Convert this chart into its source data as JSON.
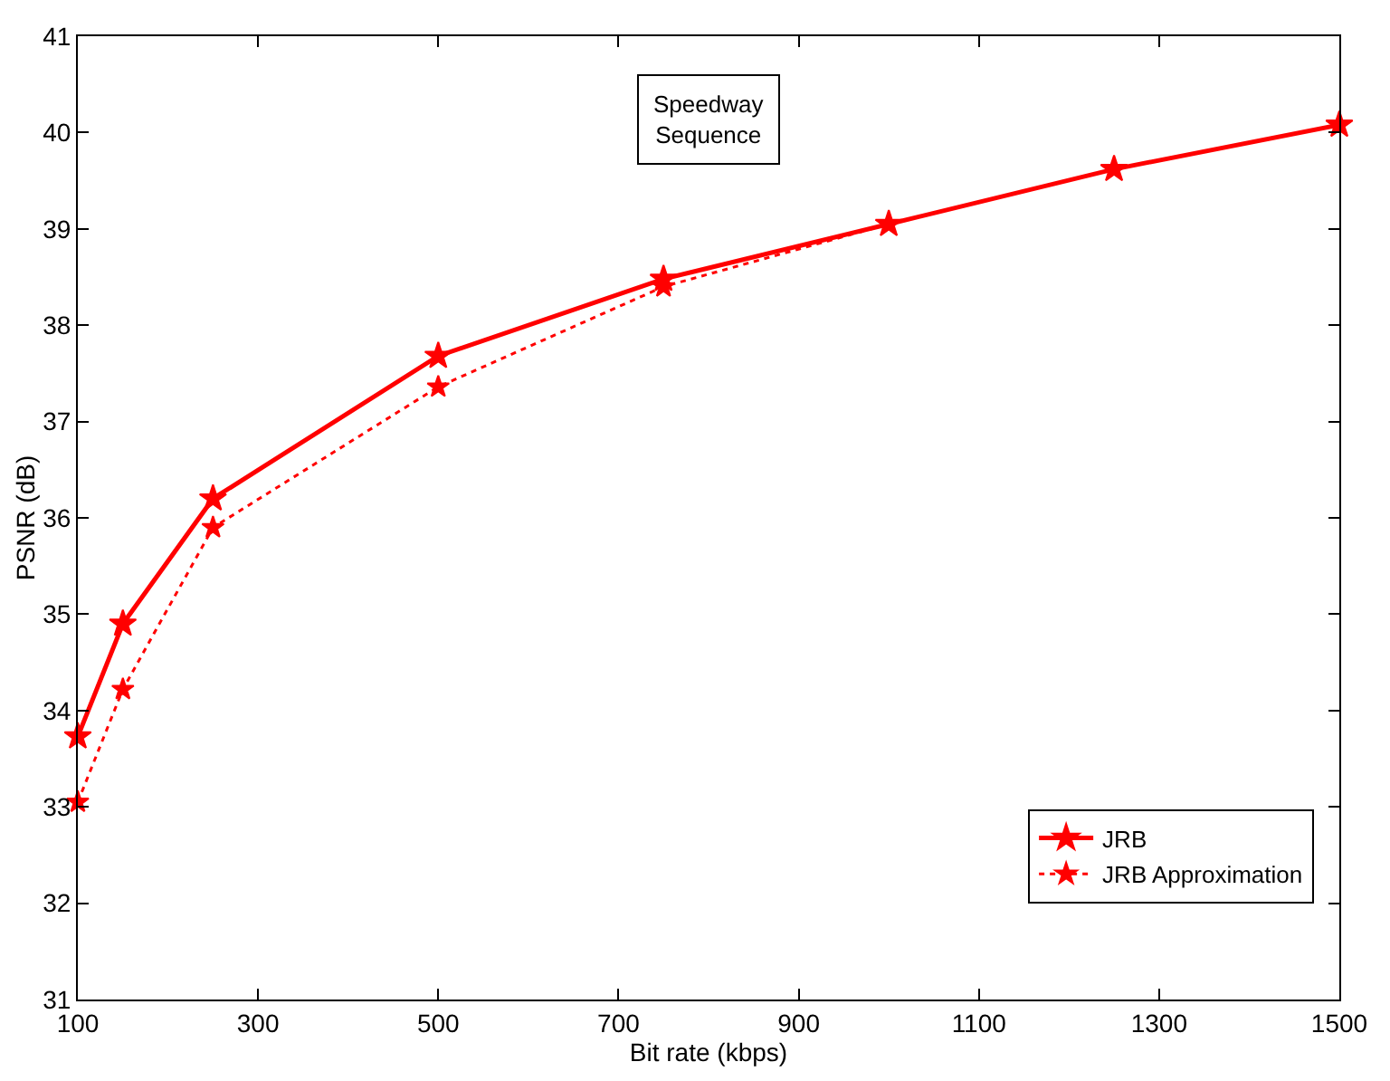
{
  "chart_data": {
    "type": "line",
    "xlabel": "Bit rate (kbps)",
    "ylabel": "PSNR (dB)",
    "annotations": [
      "Speedway\nSequence"
    ],
    "xlim": [
      100,
      1500
    ],
    "xticks": [
      100,
      300,
      500,
      700,
      900,
      1100,
      1300,
      1500
    ],
    "ylim": [
      31,
      41
    ],
    "yticks": [
      31,
      32,
      33,
      34,
      35,
      36,
      37,
      38,
      39,
      40,
      41
    ],
    "grid": false,
    "legend": "bottom right",
    "marker": "star",
    "series": [
      {
        "name": "JRB",
        "color": "#ff0000",
        "line_style": "solid",
        "x": [
          100,
          150,
          250,
          500,
          750,
          1000,
          1250,
          1500
        ],
        "values": [
          33.73,
          34.9,
          36.2,
          37.68,
          38.48,
          39.05,
          39.62,
          40.08
        ]
      },
      {
        "name": "JRB Approximation",
        "color": "#ff0000",
        "line_style": "dotted",
        "x": [
          100,
          150,
          250,
          500,
          750,
          1000,
          1250
        ],
        "values": [
          33.05,
          34.22,
          35.9,
          37.36,
          38.4,
          39.05,
          39.62
        ]
      }
    ]
  }
}
